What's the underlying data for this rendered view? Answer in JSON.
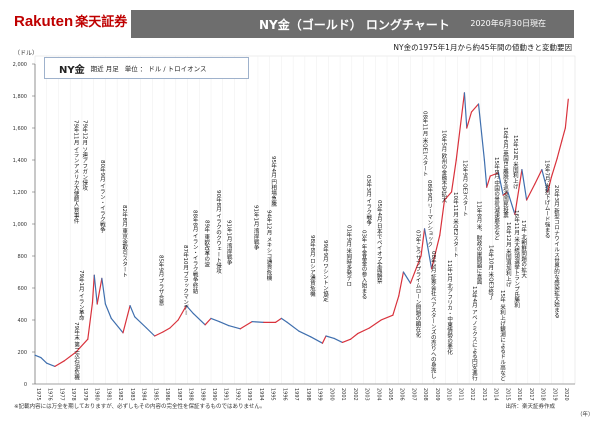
{
  "header": {
    "logo": "Rakuten",
    "logo_jp": "楽天証券",
    "title": "NY金（ゴールド） ロングチャート",
    "date": "2020年6月30日現在"
  },
  "subtitle": "NY金の1975年1月から約45年間の値動きと変動要因",
  "footer": {
    "disclaimer": "※記載内容には万全を期しておりますが、必ずしもその内容の完全性を保証するものではありません。",
    "source": "出所：楽天証券作成"
  },
  "chart_data": {
    "type": "line",
    "title": "NY金",
    "legend": {
      "name": "NY金",
      "detail1": "期近 月足",
      "detail2": "単位 ： ドル / トロイオンス"
    },
    "ylabel": "（ドル）",
    "xlabel": "（年）",
    "ylim": [
      0,
      2000
    ],
    "xlim": [
      1975,
      2020.5
    ],
    "yticks": [
      "0",
      "200",
      "400",
      "600",
      "800",
      "1,000",
      "1,200",
      "1,400",
      "1,600",
      "1,800",
      "2,000"
    ],
    "xticks": [
      "1975",
      "1976",
      "1977",
      "1978",
      "1979",
      "1980",
      "1981",
      "1982",
      "1983",
      "1984",
      "1985",
      "1986",
      "1987",
      "1988",
      "1989",
      "1990",
      "1991",
      "1992",
      "1993",
      "1994",
      "1995",
      "1996",
      "1997",
      "1998",
      "1999",
      "2000",
      "2001",
      "2002",
      "2003",
      "2004",
      "2005",
      "2006",
      "2007",
      "2008",
      "2009",
      "2010",
      "2011",
      "2012",
      "2013",
      "2014",
      "2015",
      "2016",
      "2017",
      "2018",
      "2019",
      "2020"
    ],
    "grid": true,
    "colors": {
      "up": "#d9323c",
      "down": "#3f6fae"
    },
    "x": [
      1975.0,
      1975.5,
      1976.0,
      1976.7,
      1977.5,
      1978.5,
      1979.5,
      1979.9,
      1980.05,
      1980.3,
      1980.7,
      1981.0,
      1981.5,
      1982.5,
      1983.1,
      1983.5,
      1984.5,
      1985.2,
      1985.9,
      1986.5,
      1987.2,
      1987.9,
      1988.5,
      1989.5,
      1990.0,
      1990.7,
      1991.5,
      1992.5,
      1993.5,
      1994.5,
      1995.5,
      1996.0,
      1996.5,
      1997.5,
      1998.5,
      1999.5,
      1999.8,
      2000.5,
      2001.2,
      2001.9,
      2002.5,
      2003.5,
      2004.5,
      2005.5,
      2006.0,
      2006.4,
      2007.0,
      2007.9,
      2008.2,
      2008.8,
      2009.5,
      2009.9,
      2010.5,
      2010.9,
      2011.6,
      2011.8,
      2012.2,
      2012.8,
      2013.3,
      2013.5,
      2013.8,
      2014.5,
      2014.9,
      2015.3,
      2015.9,
      2016.5,
      2016.9,
      2017.6,
      2018.2,
      2018.7,
      2019.0,
      2019.5,
      2019.9,
      2020.2,
      2020.45
    ],
    "y": [
      180,
      165,
      130,
      110,
      145,
      200,
      280,
      510,
      680,
      500,
      660,
      500,
      410,
      320,
      490,
      420,
      350,
      300,
      325,
      350,
      400,
      490,
      440,
      370,
      410,
      390,
      365,
      345,
      390,
      385,
      385,
      410,
      385,
      330,
      295,
      255,
      300,
      285,
      260,
      280,
      315,
      350,
      400,
      430,
      550,
      700,
      630,
      800,
      970,
      720,
      930,
      1150,
      1200,
      1400,
      1820,
      1600,
      1700,
      1750,
      1400,
      1230,
      1300,
      1320,
      1180,
      1200,
      1060,
      1340,
      1150,
      1250,
      1340,
      1200,
      1290,
      1410,
      1520,
      1600,
      1780
    ],
    "annotations": [
      {
        "year": 1978.9,
        "text": "79年1月 イラン革命"
      },
      {
        "year": 1978.5,
        "text": "79年末 第二次石油危機"
      },
      {
        "year": 1979.2,
        "text": "79年12月 ソ連アフガン侵攻"
      },
      {
        "year": 1978.8,
        "text": "79年11月 イランアメリカ大使館人質事件"
      },
      {
        "year": 1980.7,
        "text": "80年9月 イラン・イラク戦争"
      },
      {
        "year": 1982.6,
        "text": "82年8月 東京金取引スタート"
      },
      {
        "year": 1985.7,
        "text": "85年9月 プラザ合意"
      },
      {
        "year": 1987.8,
        "text": "87年10月 ブラックマンデー"
      },
      {
        "year": 1988.6,
        "text": "88年8月 イラン・イラク戦争終結"
      },
      {
        "year": 1989.6,
        "text": "89年 東欧改革の波"
      },
      {
        "year": 1990.6,
        "text": "90年8月 イラクのクウェート侵攻"
      },
      {
        "year": 1991.5,
        "text": "91年1月 湾岸戦争"
      },
      {
        "year": 1993.8,
        "text": "91年1月 湾岸戦争"
      },
      {
        "year": 1994.9,
        "text": "94年12月 メキシコ通貨危機"
      },
      {
        "year": 1995.3,
        "text": "95年4月 円相場急騰"
      },
      {
        "year": 1998.6,
        "text": "98年8月 ロシア通貨危機"
      },
      {
        "year": 1999.7,
        "text": "99年9月 ワシントン協定"
      },
      {
        "year": 2001.7,
        "text": "01年9月 米同時多発テロ"
      },
      {
        "year": 2003.0,
        "text": "03年 年金基金の参入始まる"
      },
      {
        "year": 2003.4,
        "text": "03年3月 イラク戦争"
      },
      {
        "year": 2004.3,
        "text": "05年4月 日本でペイオフ全面解禁"
      },
      {
        "year": 2007.6,
        "text": "07年ころ サブプライムローン問題の顕在化"
      },
      {
        "year": 2008.6,
        "text": "08年9月 リーマンショック"
      },
      {
        "year": 2008.2,
        "text": "08年11月 米QE1スタート"
      },
      {
        "year": 2008.9,
        "text": "08年3月 証券会社ベアスターンズの売りへの身売し"
      },
      {
        "year": 2009.8,
        "text": "10年5月 欧州の金融不安拡大"
      },
      {
        "year": 2010.3,
        "text": "11年1月 北アフリカ・中東情勢の悪化"
      },
      {
        "year": 2010.8,
        "text": "10年11月 米QE2スタート"
      },
      {
        "year": 2011.6,
        "text": "12年9月 QE3スタート"
      },
      {
        "year": 2012.4,
        "text": "13年4月 アベノミクスによる円安進行"
      },
      {
        "year": 2012.8,
        "text": "11年8月 米、財政の崖問題に直面"
      },
      {
        "year": 2013.8,
        "text": "14年10月 米QE3終了"
      },
      {
        "year": 2014.3,
        "text": "15年8月 中国の景気減速懸念など"
      },
      {
        "year": 2014.8,
        "text": "15年 米利上げ観測によるドル高など"
      },
      {
        "year": 2015.3,
        "text": "16年12月 米国追加利上げ"
      },
      {
        "year": 2015.9,
        "text": "15年12月 米国利上げ"
      },
      {
        "year": 2015.4,
        "text": "16年6月 英国EU離脱を巡る国民投票"
      },
      {
        "year": 2016.0,
        "text": "16年11月 米大統領選挙トランプ氏勝利"
      },
      {
        "year": 2016.6,
        "text": "17年 北朝鮮問題の拡大"
      },
      {
        "year": 2018.6,
        "text": "19年7月 米利下げムード強まる"
      },
      {
        "year": 2019.4,
        "text": "20年3月 新型コロナウイルス世界的な感染拡大始まる"
      }
    ]
  }
}
